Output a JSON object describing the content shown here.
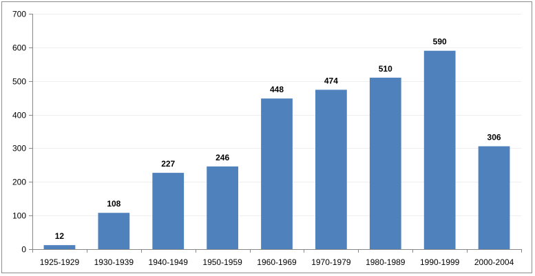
{
  "chart_data": {
    "type": "bar",
    "title": "",
    "xlabel": "",
    "ylabel": "",
    "categories": [
      "1925-1929",
      "1930-1939",
      "1940-1949",
      "1950-1959",
      "1960-1969",
      "1970-1979",
      "1980-1989",
      "1990-1999",
      "2000-2004"
    ],
    "values": [
      12,
      108,
      227,
      246,
      448,
      474,
      510,
      590,
      306
    ],
    "ylim": [
      0,
      700
    ],
    "yticks": [
      0,
      100,
      200,
      300,
      400,
      500,
      600,
      700
    ],
    "grid": true,
    "legend": "none",
    "colors": {
      "bar": "#4f81bd",
      "gridline": "#eeeeee",
      "axis": "#868686"
    }
  }
}
